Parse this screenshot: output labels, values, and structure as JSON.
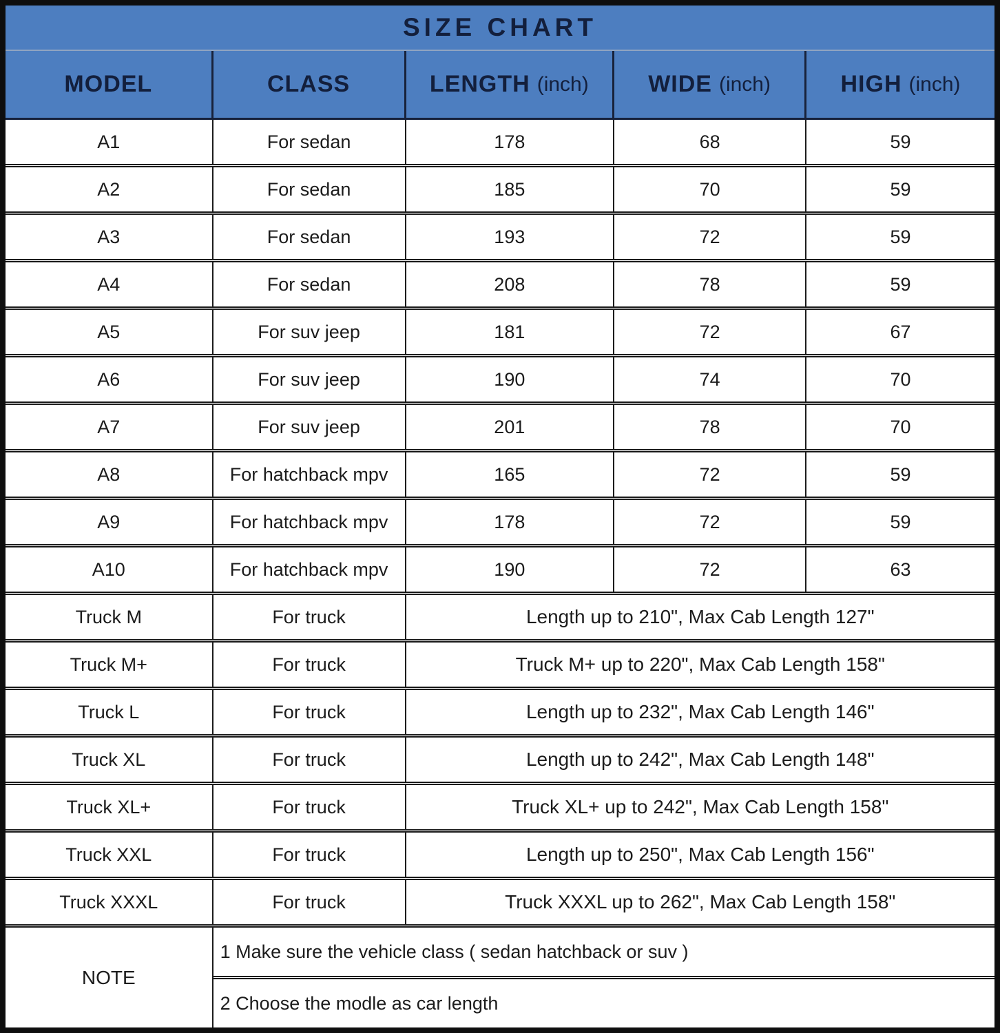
{
  "colors": {
    "header_bg": "#4d7ec0",
    "header_text": "#131f3c",
    "grid_line": "#1b1b1b",
    "cell_bg": "#ffffff",
    "body_text": "#1c1c1c"
  },
  "chart_data": {
    "type": "table",
    "title": "SIZE CHART",
    "header": {
      "columns": [
        {
          "label": "MODEL",
          "unit": ""
        },
        {
          "label": "CLASS",
          "unit": ""
        },
        {
          "label": "LENGTH",
          "unit": "(inch)"
        },
        {
          "label": "WIDE",
          "unit": "(inch)"
        },
        {
          "label": "HIGH",
          "unit": "(inch)"
        }
      ]
    },
    "model_rows": [
      {
        "model": "A1",
        "class": "For sedan",
        "length_in": "178",
        "wide_in": "68",
        "high_in": "59"
      },
      {
        "model": "A2",
        "class": "For sedan",
        "length_in": "185",
        "wide_in": "70",
        "high_in": "59"
      },
      {
        "model": "A3",
        "class": "For sedan",
        "length_in": "193",
        "wide_in": "72",
        "high_in": "59"
      },
      {
        "model": "A4",
        "class": "For sedan",
        "length_in": "208",
        "wide_in": "78",
        "high_in": "59"
      },
      {
        "model": "A5",
        "class": "For suv jeep",
        "length_in": "181",
        "wide_in": "72",
        "high_in": "67"
      },
      {
        "model": "A6",
        "class": "For suv jeep",
        "length_in": "190",
        "wide_in": "74",
        "high_in": "70"
      },
      {
        "model": "A7",
        "class": "For suv jeep",
        "length_in": "201",
        "wide_in": "78",
        "high_in": "70"
      },
      {
        "model": "A8",
        "class": "For hatchback mpv",
        "length_in": "165",
        "wide_in": "72",
        "high_in": "59"
      },
      {
        "model": "A9",
        "class": "For hatchback mpv",
        "length_in": "178",
        "wide_in": "72",
        "high_in": "59"
      },
      {
        "model": "A10",
        "class": "For hatchback mpv",
        "length_in": "190",
        "wide_in": "72",
        "high_in": "63"
      }
    ],
    "truck_rows": [
      {
        "model": "Truck M",
        "class": "For truck",
        "size_note": "Length up to 210\", Max Cab Length 127\""
      },
      {
        "model": "Truck M+",
        "class": "For truck",
        "size_note": "Truck M+ up to 220\", Max Cab Length 158\""
      },
      {
        "model": "Truck L",
        "class": "For truck",
        "size_note": "Length up to 232\", Max Cab Length 146\""
      },
      {
        "model": "Truck XL",
        "class": "For truck",
        "size_note": "Length up to 242\", Max Cab Length 148\""
      },
      {
        "model": "Truck XL+",
        "class": "For truck",
        "size_note": "Truck XL+ up to 242\", Max Cab Length 158\""
      },
      {
        "model": "Truck XXL",
        "class": "For truck",
        "size_note": "Length up to 250\", Max Cab Length 156\""
      },
      {
        "model": "Truck XXXL",
        "class": "For truck",
        "size_note": "Truck XXXL up to 262\", Max Cab Length 158\""
      }
    ],
    "note": {
      "label": "NOTE",
      "lines": [
        "1 Make sure the  vehicle class ( sedan hatchback or suv )",
        "2 Choose the modle as car length"
      ]
    }
  }
}
